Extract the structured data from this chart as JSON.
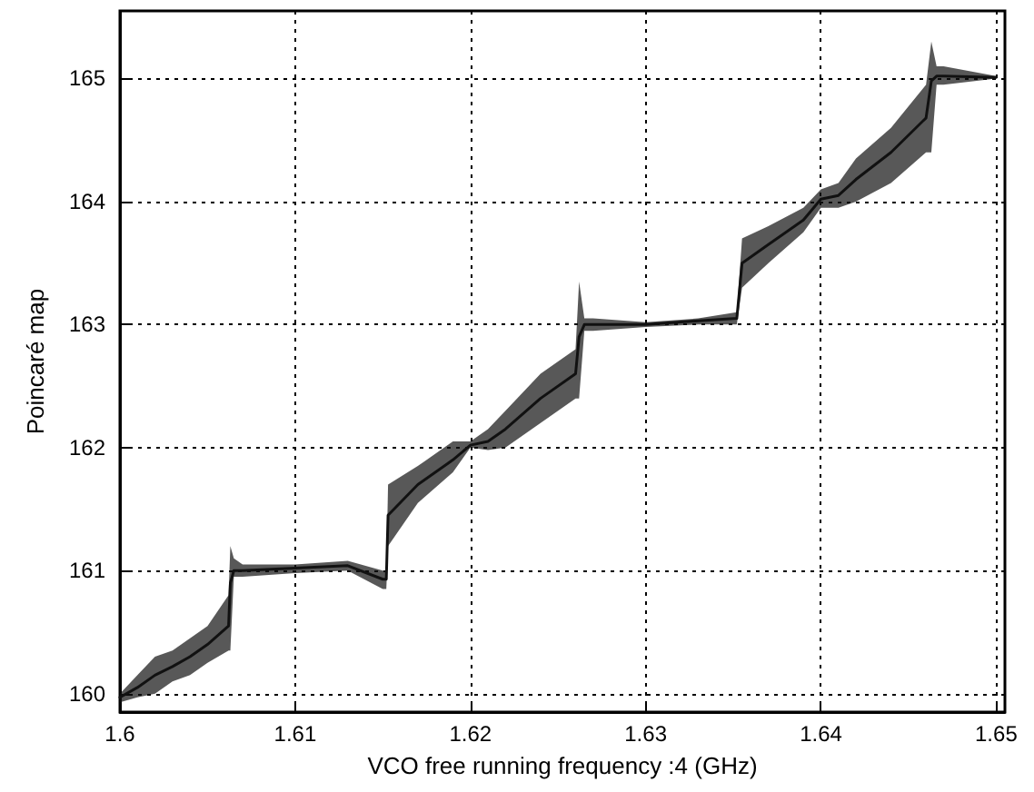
{
  "chart_data": {
    "type": "line",
    "xlabel": "VCO free running frequency :4 (GHz)",
    "ylabel": "Poincaré map",
    "xlim": [
      1.6,
      1.6505
    ],
    "ylim": [
      159.85,
      165.55
    ],
    "xticks": [
      1.6,
      1.61,
      1.62,
      1.63,
      1.64,
      1.65
    ],
    "yticks": [
      160,
      161,
      162,
      163,
      164,
      165
    ],
    "grid": true,
    "marker": "none",
    "line_style": "solid",
    "series": [
      {
        "color": "#111111",
        "x": [
          1.6,
          1.601,
          1.602,
          1.603,
          1.604,
          1.605,
          1.6062,
          1.6063,
          1.6065,
          1.607,
          1.61,
          1.613,
          1.615,
          1.6152,
          1.6153,
          1.617,
          1.619,
          1.62,
          1.621,
          1.622,
          1.624,
          1.626,
          1.6262,
          1.6265,
          1.627,
          1.63,
          1.633,
          1.6352,
          1.6355,
          1.637,
          1.639,
          1.64,
          1.641,
          1.642,
          1.644,
          1.646,
          1.6463,
          1.6466,
          1.647,
          1.65
        ],
        "values": [
          159.97,
          160.05,
          160.15,
          160.22,
          160.3,
          160.4,
          160.55,
          160.9,
          161.0,
          161.0,
          161.02,
          161.04,
          160.93,
          160.93,
          161.45,
          161.7,
          161.9,
          162.02,
          162.05,
          162.15,
          162.4,
          162.6,
          162.9,
          163.0,
          163.0,
          163.0,
          163.03,
          163.05,
          163.5,
          163.65,
          163.85,
          164.02,
          164.05,
          164.18,
          164.4,
          164.68,
          164.98,
          165.02,
          165.02,
          165.01
        ],
        "lower": [
          159.93,
          159.97,
          160.0,
          160.1,
          160.15,
          160.25,
          160.35,
          160.35,
          160.95,
          160.95,
          160.98,
          161.0,
          160.85,
          160.85,
          161.2,
          161.55,
          161.8,
          162.0,
          161.98,
          162.0,
          162.2,
          162.4,
          162.4,
          162.95,
          162.95,
          162.98,
          163.0,
          163.0,
          163.3,
          163.5,
          163.75,
          163.95,
          163.95,
          164.0,
          164.15,
          164.4,
          164.4,
          164.95,
          164.95,
          165.0
        ],
        "upper": [
          160.0,
          160.15,
          160.3,
          160.35,
          160.45,
          160.55,
          160.8,
          161.2,
          161.1,
          161.05,
          161.05,
          161.08,
          161.0,
          161.0,
          161.7,
          161.85,
          162.05,
          162.05,
          162.15,
          162.3,
          162.6,
          162.8,
          163.35,
          163.05,
          163.05,
          163.02,
          163.05,
          163.1,
          163.7,
          163.8,
          163.95,
          164.1,
          164.15,
          164.35,
          164.6,
          164.95,
          165.3,
          165.1,
          165.1,
          165.02
        ]
      }
    ]
  }
}
